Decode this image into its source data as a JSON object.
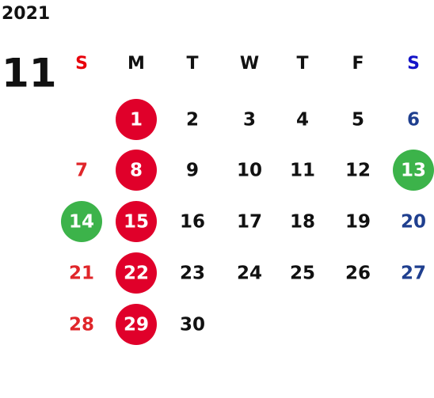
{
  "year": "2021",
  "month": "11",
  "weekdays": [
    {
      "label": "S",
      "color": "#e8000b"
    },
    {
      "label": "M",
      "color": "#111111"
    },
    {
      "label": "T",
      "color": "#111111"
    },
    {
      "label": "W",
      "color": "#111111"
    },
    {
      "label": "T",
      "color": "#111111"
    },
    {
      "label": "F",
      "color": "#111111"
    },
    {
      "label": "S",
      "color": "#1414c8"
    }
  ],
  "column_colors": [
    "#e0262a",
    "#111111",
    "#111111",
    "#111111",
    "#111111",
    "#111111",
    "#1f3f8f"
  ],
  "weeks": [
    [
      null,
      {
        "day": 1,
        "circle": "#e0002a"
      },
      {
        "day": 2
      },
      {
        "day": 3
      },
      {
        "day": 4
      },
      {
        "day": 5
      },
      {
        "day": 6
      }
    ],
    [
      {
        "day": 7
      },
      {
        "day": 8,
        "circle": "#e0002a"
      },
      {
        "day": 9
      },
      {
        "day": 10
      },
      {
        "day": 11
      },
      {
        "day": 12
      },
      {
        "day": 13,
        "circle": "#3cb34a"
      }
    ],
    [
      {
        "day": 14,
        "circle": "#3cb34a"
      },
      {
        "day": 15,
        "circle": "#e0002a"
      },
      {
        "day": 16
      },
      {
        "day": 17
      },
      {
        "day": 18
      },
      {
        "day": 19
      },
      {
        "day": 20
      }
    ],
    [
      {
        "day": 21
      },
      {
        "day": 22,
        "circle": "#e0002a"
      },
      {
        "day": 23
      },
      {
        "day": 24
      },
      {
        "day": 25
      },
      {
        "day": 26
      },
      {
        "day": 27
      }
    ],
    [
      {
        "day": 28
      },
      {
        "day": 29,
        "circle": "#e0002a"
      },
      {
        "day": 30
      },
      null,
      null,
      null,
      null
    ]
  ]
}
